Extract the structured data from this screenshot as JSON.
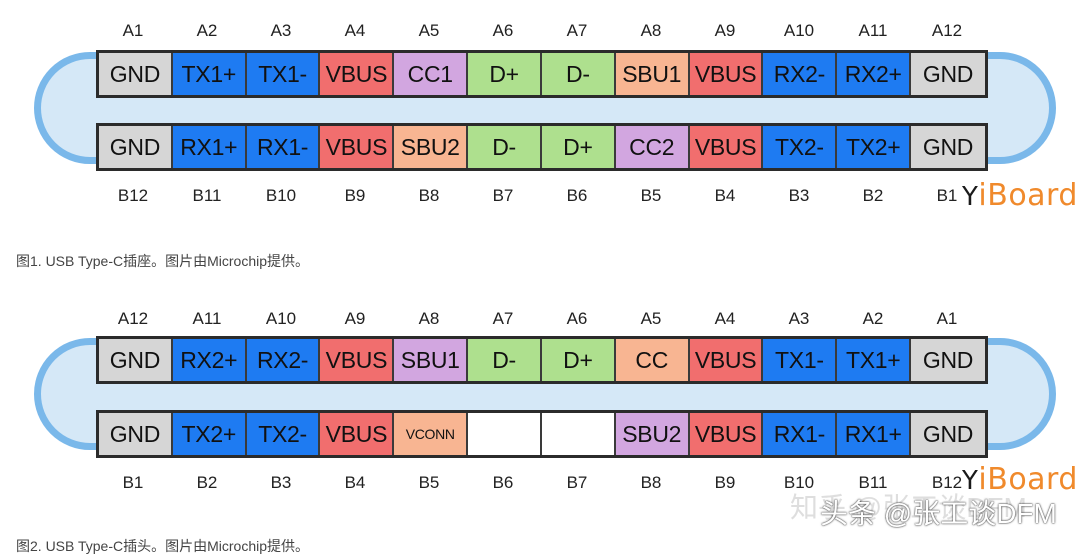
{
  "colors": {
    "GND": "#d6d6d6",
    "TX": "#1e7bf2",
    "RX": "#1e7bf2",
    "VBUS": "#f16e6e",
    "CC": "#d2a6e0",
    "D": "#aee08e",
    "SBU_violet": "#d2a6e0",
    "SBU_salmon": "#f8b592",
    "empty": "#ffffff",
    "shell": "#7ab8ea"
  },
  "figure1": {
    "top_labels": [
      "A1",
      "A2",
      "A3",
      "A4",
      "A5",
      "A6",
      "A7",
      "A8",
      "A9",
      "A10",
      "A11",
      "A12"
    ],
    "top_pins": [
      {
        "label": "GND",
        "color": "#d6d6d6"
      },
      {
        "label": "TX1+",
        "color": "#1e7bf2"
      },
      {
        "label": "TX1-",
        "color": "#1e7bf2"
      },
      {
        "label": "VBUS",
        "color": "#f16e6e"
      },
      {
        "label": "CC1",
        "color": "#d2a6e0"
      },
      {
        "label": "D+",
        "color": "#aee08e"
      },
      {
        "label": "D-",
        "color": "#aee08e"
      },
      {
        "label": "SBU1",
        "color": "#f8b592"
      },
      {
        "label": "VBUS",
        "color": "#f16e6e"
      },
      {
        "label": "RX2-",
        "color": "#1e7bf2"
      },
      {
        "label": "RX2+",
        "color": "#1e7bf2"
      },
      {
        "label": "GND",
        "color": "#d6d6d6"
      }
    ],
    "bottom_pins": [
      {
        "label": "GND",
        "color": "#d6d6d6"
      },
      {
        "label": "RX1+",
        "color": "#1e7bf2"
      },
      {
        "label": "RX1-",
        "color": "#1e7bf2"
      },
      {
        "label": "VBUS",
        "color": "#f16e6e"
      },
      {
        "label": "SBU2",
        "color": "#f8b592"
      },
      {
        "label": "D-",
        "color": "#aee08e"
      },
      {
        "label": "D+",
        "color": "#aee08e"
      },
      {
        "label": "CC2",
        "color": "#d2a6e0"
      },
      {
        "label": "VBUS",
        "color": "#f16e6e"
      },
      {
        "label": "TX2-",
        "color": "#1e7bf2"
      },
      {
        "label": "TX2+",
        "color": "#1e7bf2"
      },
      {
        "label": "GND",
        "color": "#d6d6d6"
      }
    ],
    "bottom_labels": [
      "B12",
      "B11",
      "B10",
      "B9",
      "B8",
      "B7",
      "B6",
      "B5",
      "B4",
      "B3",
      "B2",
      "B1"
    ],
    "caption": "图1. USB Type-C插座。图片由Microchip提供。"
  },
  "figure2": {
    "top_labels": [
      "A12",
      "A11",
      "A10",
      "A9",
      "A8",
      "A7",
      "A6",
      "A5",
      "A4",
      "A3",
      "A2",
      "A1"
    ],
    "top_pins": [
      {
        "label": "GND",
        "color": "#d6d6d6"
      },
      {
        "label": "RX2+",
        "color": "#1e7bf2"
      },
      {
        "label": "RX2-",
        "color": "#1e7bf2"
      },
      {
        "label": "VBUS",
        "color": "#f16e6e"
      },
      {
        "label": "SBU1",
        "color": "#d2a6e0"
      },
      {
        "label": "D-",
        "color": "#aee08e"
      },
      {
        "label": "D+",
        "color": "#aee08e"
      },
      {
        "label": "CC",
        "color": "#f8b592"
      },
      {
        "label": "VBUS",
        "color": "#f16e6e"
      },
      {
        "label": "TX1-",
        "color": "#1e7bf2"
      },
      {
        "label": "TX1+",
        "color": "#1e7bf2"
      },
      {
        "label": "GND",
        "color": "#d6d6d6"
      }
    ],
    "bottom_pins": [
      {
        "label": "GND",
        "color": "#d6d6d6"
      },
      {
        "label": "TX2+",
        "color": "#1e7bf2"
      },
      {
        "label": "TX2-",
        "color": "#1e7bf2"
      },
      {
        "label": "VBUS",
        "color": "#f16e6e"
      },
      {
        "label": "VCONN",
        "color": "#f8b592",
        "small": true
      },
      {
        "label": "",
        "color": "#ffffff"
      },
      {
        "label": "",
        "color": "#ffffff"
      },
      {
        "label": "SBU2",
        "color": "#d2a6e0"
      },
      {
        "label": "VBUS",
        "color": "#f16e6e"
      },
      {
        "label": "RX1-",
        "color": "#1e7bf2"
      },
      {
        "label": "RX1+",
        "color": "#1e7bf2"
      },
      {
        "label": "GND",
        "color": "#d6d6d6"
      }
    ],
    "bottom_labels": [
      "B1",
      "B2",
      "B3",
      "B4",
      "B5",
      "B6",
      "B7",
      "B8",
      "B9",
      "B10",
      "B11",
      "B12"
    ],
    "caption": "图2. USB Type-C插头。图片由Microchip提供。"
  },
  "logo": {
    "mark": "Y",
    "i": "i",
    "text": "Board"
  },
  "watermark": {
    "back": "知乎 @张工谈DFM",
    "front": "头条 @张工谈DFM"
  }
}
